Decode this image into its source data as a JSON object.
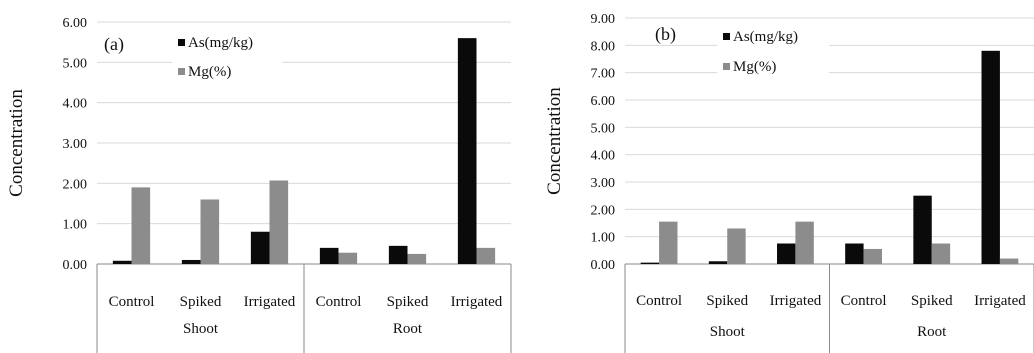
{
  "colors": {
    "As": "#0a0a0a",
    "Mg": "#8c8c8c",
    "grid": "#d9d9d9",
    "axis": "#8a8a8a"
  },
  "chart_data": [
    {
      "type": "bar",
      "panel_label": "(a)",
      "ylabel": "Concentration",
      "ylim": [
        0,
        6
      ],
      "yticks": [
        "0.00",
        "1.00",
        "2.00",
        "3.00",
        "4.00",
        "5.00",
        "6.00"
      ],
      "grid": true,
      "legend_position": "top-left-inside",
      "groups": [
        {
          "name": "Shoot",
          "categories": [
            "Control",
            "Spiked",
            "Irrigated"
          ]
        },
        {
          "name": "Root",
          "categories": [
            "Control",
            "Spiked",
            "Irrigated"
          ]
        }
      ],
      "categories": [
        "Control",
        "Spiked",
        "Irrigated",
        "Control",
        "Spiked",
        "Irrigated"
      ],
      "series": [
        {
          "name": "As(mg/kg)",
          "values": [
            0.08,
            0.1,
            0.8,
            0.4,
            0.45,
            5.6
          ]
        },
        {
          "name": "Mg(%)",
          "values": [
            1.9,
            1.6,
            2.07,
            0.28,
            0.25,
            0.4
          ]
        }
      ]
    },
    {
      "type": "bar",
      "panel_label": "(b)",
      "ylabel": "Concentration",
      "ylim": [
        0,
        9
      ],
      "yticks": [
        "0.00",
        "1.00",
        "2.00",
        "3.00",
        "4.00",
        "5.00",
        "6.00",
        "7.00",
        "8.00",
        "9.00"
      ],
      "grid": true,
      "legend_position": "top-left-inside",
      "groups": [
        {
          "name": "Shoot",
          "categories": [
            "Control",
            "Spiked",
            "Irrigated"
          ]
        },
        {
          "name": "Root",
          "categories": [
            "Control",
            "Spiked",
            "Irrigated"
          ]
        }
      ],
      "categories": [
        "Control",
        "Spiked",
        "Irrigated",
        "Control",
        "Spiked",
        "Irrigated"
      ],
      "series": [
        {
          "name": "As(mg/kg)",
          "values": [
            0.05,
            0.1,
            0.75,
            0.75,
            2.5,
            7.8
          ]
        },
        {
          "name": "Mg(%)",
          "values": [
            1.55,
            1.3,
            1.55,
            0.55,
            0.75,
            0.2
          ]
        }
      ]
    }
  ]
}
